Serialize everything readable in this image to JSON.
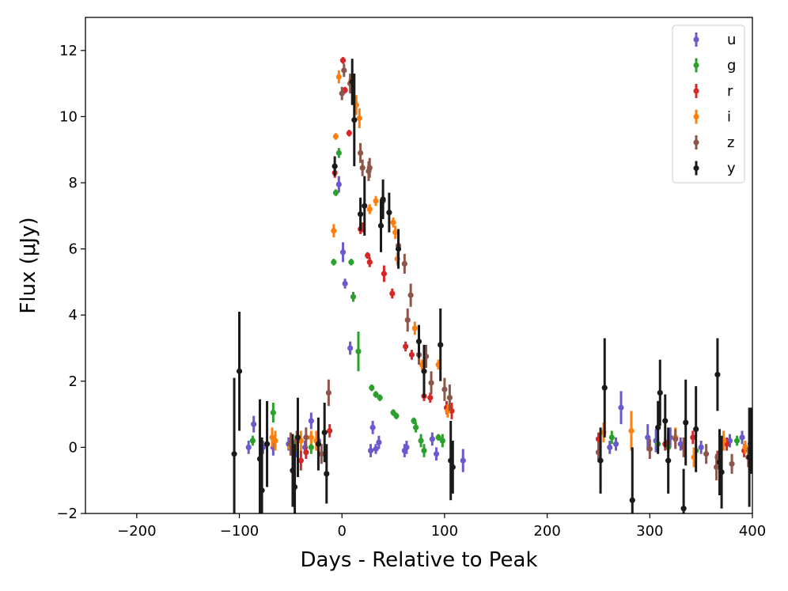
{
  "chart_data": {
    "type": "scatter",
    "title": "",
    "xlabel": "Days - Relative to Peak",
    "ylabel": "Flux (μJy)",
    "xlim": [
      -250,
      400
    ],
    "ylim": [
      -2,
      13
    ],
    "xticks": [
      -200,
      -100,
      0,
      100,
      200,
      300,
      400
    ],
    "xtick_labels": [
      "−200",
      "−100",
      "0",
      "100",
      "200",
      "300",
      "400"
    ],
    "yticks": [
      -2,
      0,
      2,
      4,
      6,
      8,
      10,
      12
    ],
    "ytick_labels": [
      "−2",
      "0",
      "2",
      "4",
      "6",
      "8",
      "10",
      "12"
    ],
    "grid": false,
    "legend_position": "top-right",
    "series": [
      {
        "name": "u",
        "color": "#6a5acd",
        "points": [
          [
            -91,
            0.0,
            0.2
          ],
          [
            -86,
            0.7,
            0.25
          ],
          [
            -77,
            0.0,
            0.2
          ],
          [
            -67,
            0.0,
            0.25
          ],
          [
            -52,
            0.1,
            0.2
          ],
          [
            -45,
            0.0,
            0.3
          ],
          [
            -36,
            0.0,
            0.2
          ],
          [
            -30,
            0.8,
            0.25
          ],
          [
            -23,
            0.2,
            0.2
          ],
          [
            -3,
            7.95,
            0.25
          ],
          [
            1,
            5.9,
            0.3
          ],
          [
            3,
            4.95,
            0.15
          ],
          [
            8,
            3.0,
            0.2
          ],
          [
            28,
            -0.1,
            0.2
          ],
          [
            30,
            0.6,
            0.2
          ],
          [
            33,
            -0.05,
            0.15
          ],
          [
            36,
            0.15,
            0.2
          ],
          [
            61,
            -0.1,
            0.2
          ],
          [
            63,
            0.0,
            0.2
          ],
          [
            88,
            0.25,
            0.2
          ],
          [
            92,
            -0.2,
            0.2
          ],
          [
            118,
            -0.4,
            0.35
          ],
          [
            261,
            0.0,
            0.2
          ],
          [
            267,
            0.1,
            0.2
          ],
          [
            272,
            1.2,
            0.5
          ],
          [
            298,
            0.3,
            0.4
          ],
          [
            306,
            0.2,
            0.35
          ],
          [
            320,
            0.3,
            0.3
          ],
          [
            330,
            0.1,
            0.2
          ],
          [
            350,
            0.0,
            0.2
          ],
          [
            378,
            0.2,
            0.2
          ],
          [
            390,
            0.3,
            0.2
          ],
          [
            398,
            0.1,
            0.2
          ]
        ]
      },
      {
        "name": "g",
        "color": "#2ca02c",
        "points": [
          [
            -87,
            0.2,
            0.15
          ],
          [
            -67,
            1.05,
            0.3
          ],
          [
            -45,
            0.1,
            0.25
          ],
          [
            -30,
            0.0,
            0.2
          ],
          [
            -8,
            5.6,
            0.1
          ],
          [
            -6,
            7.7,
            0.1
          ],
          [
            -3,
            8.9,
            0.15
          ],
          [
            9,
            5.6,
            0.1
          ],
          [
            11,
            4.55,
            0.15
          ],
          [
            16,
            2.9,
            0.6
          ],
          [
            29,
            1.8,
            0.1
          ],
          [
            33,
            1.6,
            0.1
          ],
          [
            37,
            1.5,
            0.1
          ],
          [
            50,
            1.05,
            0.1
          ],
          [
            53,
            0.95,
            0.1
          ],
          [
            70,
            0.8,
            0.1
          ],
          [
            72,
            0.6,
            0.15
          ],
          [
            77,
            0.2,
            0.2
          ],
          [
            80,
            -0.1,
            0.2
          ],
          [
            94,
            0.3,
            0.1
          ],
          [
            98,
            0.2,
            0.2
          ],
          [
            263,
            0.3,
            0.2
          ],
          [
            308,
            0.1,
            0.2
          ],
          [
            318,
            0.0,
            0.15
          ],
          [
            345,
            -0.1,
            0.2
          ],
          [
            370,
            0.1,
            0.15
          ],
          [
            385,
            0.2,
            0.15
          ]
        ]
      },
      {
        "name": "r",
        "color": "#d62728",
        "points": [
          [
            -40,
            -0.4,
            0.3
          ],
          [
            -35,
            -0.15,
            0.2
          ],
          [
            -12,
            0.5,
            0.2
          ],
          [
            -7,
            8.3,
            0.15
          ],
          [
            1,
            11.7,
            0.1
          ],
          [
            3,
            10.8,
            0.1
          ],
          [
            7,
            9.5,
            0.1
          ],
          [
            18,
            6.6,
            0.15
          ],
          [
            20,
            6.65,
            0.15
          ],
          [
            25,
            5.8,
            0.1
          ],
          [
            27,
            5.6,
            0.15
          ],
          [
            41,
            5.25,
            0.25
          ],
          [
            49,
            4.65,
            0.15
          ],
          [
            62,
            3.05,
            0.15
          ],
          [
            68,
            2.8,
            0.15
          ],
          [
            80,
            1.55,
            0.15
          ],
          [
            86,
            1.5,
            0.15
          ],
          [
            102,
            1.2,
            0.2
          ],
          [
            107,
            1.1,
            0.25
          ],
          [
            250,
            0.25,
            0.2
          ],
          [
            315,
            0.1,
            0.2
          ],
          [
            342,
            0.3,
            0.2
          ],
          [
            366,
            -0.3,
            0.2
          ],
          [
            375,
            0.1,
            0.2
          ],
          [
            392,
            -0.1,
            0.2
          ]
        ]
      },
      {
        "name": "i",
        "color": "#ff7f0e",
        "points": [
          [
            -68,
            0.3,
            0.3
          ],
          [
            -65,
            0.2,
            0.3
          ],
          [
            -50,
            0.0,
            0.25
          ],
          [
            -40,
            0.2,
            0.3
          ],
          [
            -30,
            0.3,
            0.2
          ],
          [
            -25,
            0.2,
            0.3
          ],
          [
            -8,
            6.55,
            0.2
          ],
          [
            -6,
            9.4,
            0.1
          ],
          [
            -3,
            11.2,
            0.2
          ],
          [
            9,
            11.1,
            0.2
          ],
          [
            14,
            10.35,
            0.3
          ],
          [
            17,
            9.95,
            0.3
          ],
          [
            27,
            7.2,
            0.15
          ],
          [
            33,
            7.45,
            0.15
          ],
          [
            50,
            6.8,
            0.15
          ],
          [
            52,
            6.5,
            0.2
          ],
          [
            54,
            5.7,
            0.2
          ],
          [
            71,
            3.6,
            0.2
          ],
          [
            75,
            2.8,
            0.2
          ],
          [
            78,
            2.5,
            0.15
          ],
          [
            94,
            2.5,
            0.15
          ],
          [
            103,
            1.1,
            0.2
          ],
          [
            255,
            0.45,
            0.3
          ],
          [
            282,
            0.5,
            0.6
          ],
          [
            325,
            0.3,
            0.3
          ],
          [
            343,
            -0.3,
            0.3
          ],
          [
            372,
            0.2,
            0.3
          ],
          [
            393,
            0.0,
            0.2
          ],
          [
            399,
            0.85,
            0.3
          ]
        ]
      },
      {
        "name": "z",
        "color": "#8c564b",
        "points": [
          [
            -50,
            0.1,
            0.35
          ],
          [
            -44,
            0.2,
            0.3
          ],
          [
            -35,
            0.3,
            0.3
          ],
          [
            -20,
            -0.2,
            0.3
          ],
          [
            -13,
            1.65,
            0.4
          ],
          [
            0,
            10.7,
            0.2
          ],
          [
            2,
            11.4,
            0.2
          ],
          [
            8,
            11.0,
            0.3
          ],
          [
            18,
            8.9,
            0.3
          ],
          [
            20,
            8.45,
            0.25
          ],
          [
            26,
            8.35,
            0.3
          ],
          [
            27,
            8.45,
            0.3
          ],
          [
            40,
            7.45,
            0.3
          ],
          [
            55,
            6.1,
            0.3
          ],
          [
            61,
            5.55,
            0.3
          ],
          [
            64,
            3.85,
            0.35
          ],
          [
            67,
            4.6,
            0.35
          ],
          [
            75,
            2.8,
            0.3
          ],
          [
            82,
            2.75,
            0.35
          ],
          [
            87,
            1.95,
            0.35
          ],
          [
            100,
            1.75,
            0.35
          ],
          [
            105,
            1.5,
            0.4
          ],
          [
            250,
            -0.15,
            0.3
          ],
          [
            300,
            -0.05,
            0.3
          ],
          [
            318,
            0.15,
            0.3
          ],
          [
            325,
            0.25,
            0.3
          ],
          [
            333,
            0.0,
            0.3
          ],
          [
            355,
            -0.2,
            0.3
          ],
          [
            365,
            -0.6,
            0.4
          ],
          [
            380,
            -0.5,
            0.3
          ],
          [
            396,
            -0.3,
            0.3
          ]
        ]
      },
      {
        "name": "y",
        "color": "#1a1a1a",
        "points": [
          [
            -105,
            -0.2,
            2.3
          ],
          [
            -100,
            2.3,
            1.8
          ],
          [
            -80,
            -0.35,
            1.8
          ],
          [
            -78,
            -1.3,
            1.6
          ],
          [
            -73,
            0.1,
            1.3
          ],
          [
            -48,
            -0.7,
            1.1
          ],
          [
            -46,
            -1.2,
            1.3
          ],
          [
            -43,
            0.3,
            1.2
          ],
          [
            -23,
            0.1,
            0.8
          ],
          [
            -17,
            0.45,
            0.9
          ],
          [
            -15,
            -0.8,
            0.9
          ],
          [
            -7,
            8.5,
            0.3
          ],
          [
            10,
            11.05,
            0.7
          ],
          [
            12,
            9.9,
            1.4
          ],
          [
            18,
            7.05,
            0.5
          ],
          [
            22,
            7.3,
            0.9
          ],
          [
            38,
            6.7,
            0.8
          ],
          [
            40,
            7.5,
            0.6
          ],
          [
            46,
            7.1,
            0.6
          ],
          [
            55,
            6.0,
            0.6
          ],
          [
            75,
            3.2,
            0.5
          ],
          [
            80,
            2.3,
            0.8
          ],
          [
            96,
            3.1,
            1.1
          ],
          [
            106,
            -0.4,
            1.2
          ],
          [
            108,
            -0.6,
            0.8
          ],
          [
            252,
            -0.4,
            1.0
          ],
          [
            256,
            1.8,
            1.5
          ],
          [
            283,
            -1.6,
            1.6
          ],
          [
            308,
            0.6,
            0.8
          ],
          [
            310,
            1.65,
            1.0
          ],
          [
            315,
            0.8,
            0.8
          ],
          [
            318,
            -0.4,
            1.0
          ],
          [
            333,
            -1.85,
            1.2
          ],
          [
            335,
            0.75,
            1.3
          ],
          [
            345,
            0.55,
            1.3
          ],
          [
            366,
            2.2,
            1.1
          ],
          [
            368,
            -0.45,
            1.0
          ],
          [
            370,
            -0.75,
            1.1
          ],
          [
            397,
            -0.3,
            1.5
          ],
          [
            399,
            0.2,
            1.0
          ]
        ]
      }
    ]
  }
}
